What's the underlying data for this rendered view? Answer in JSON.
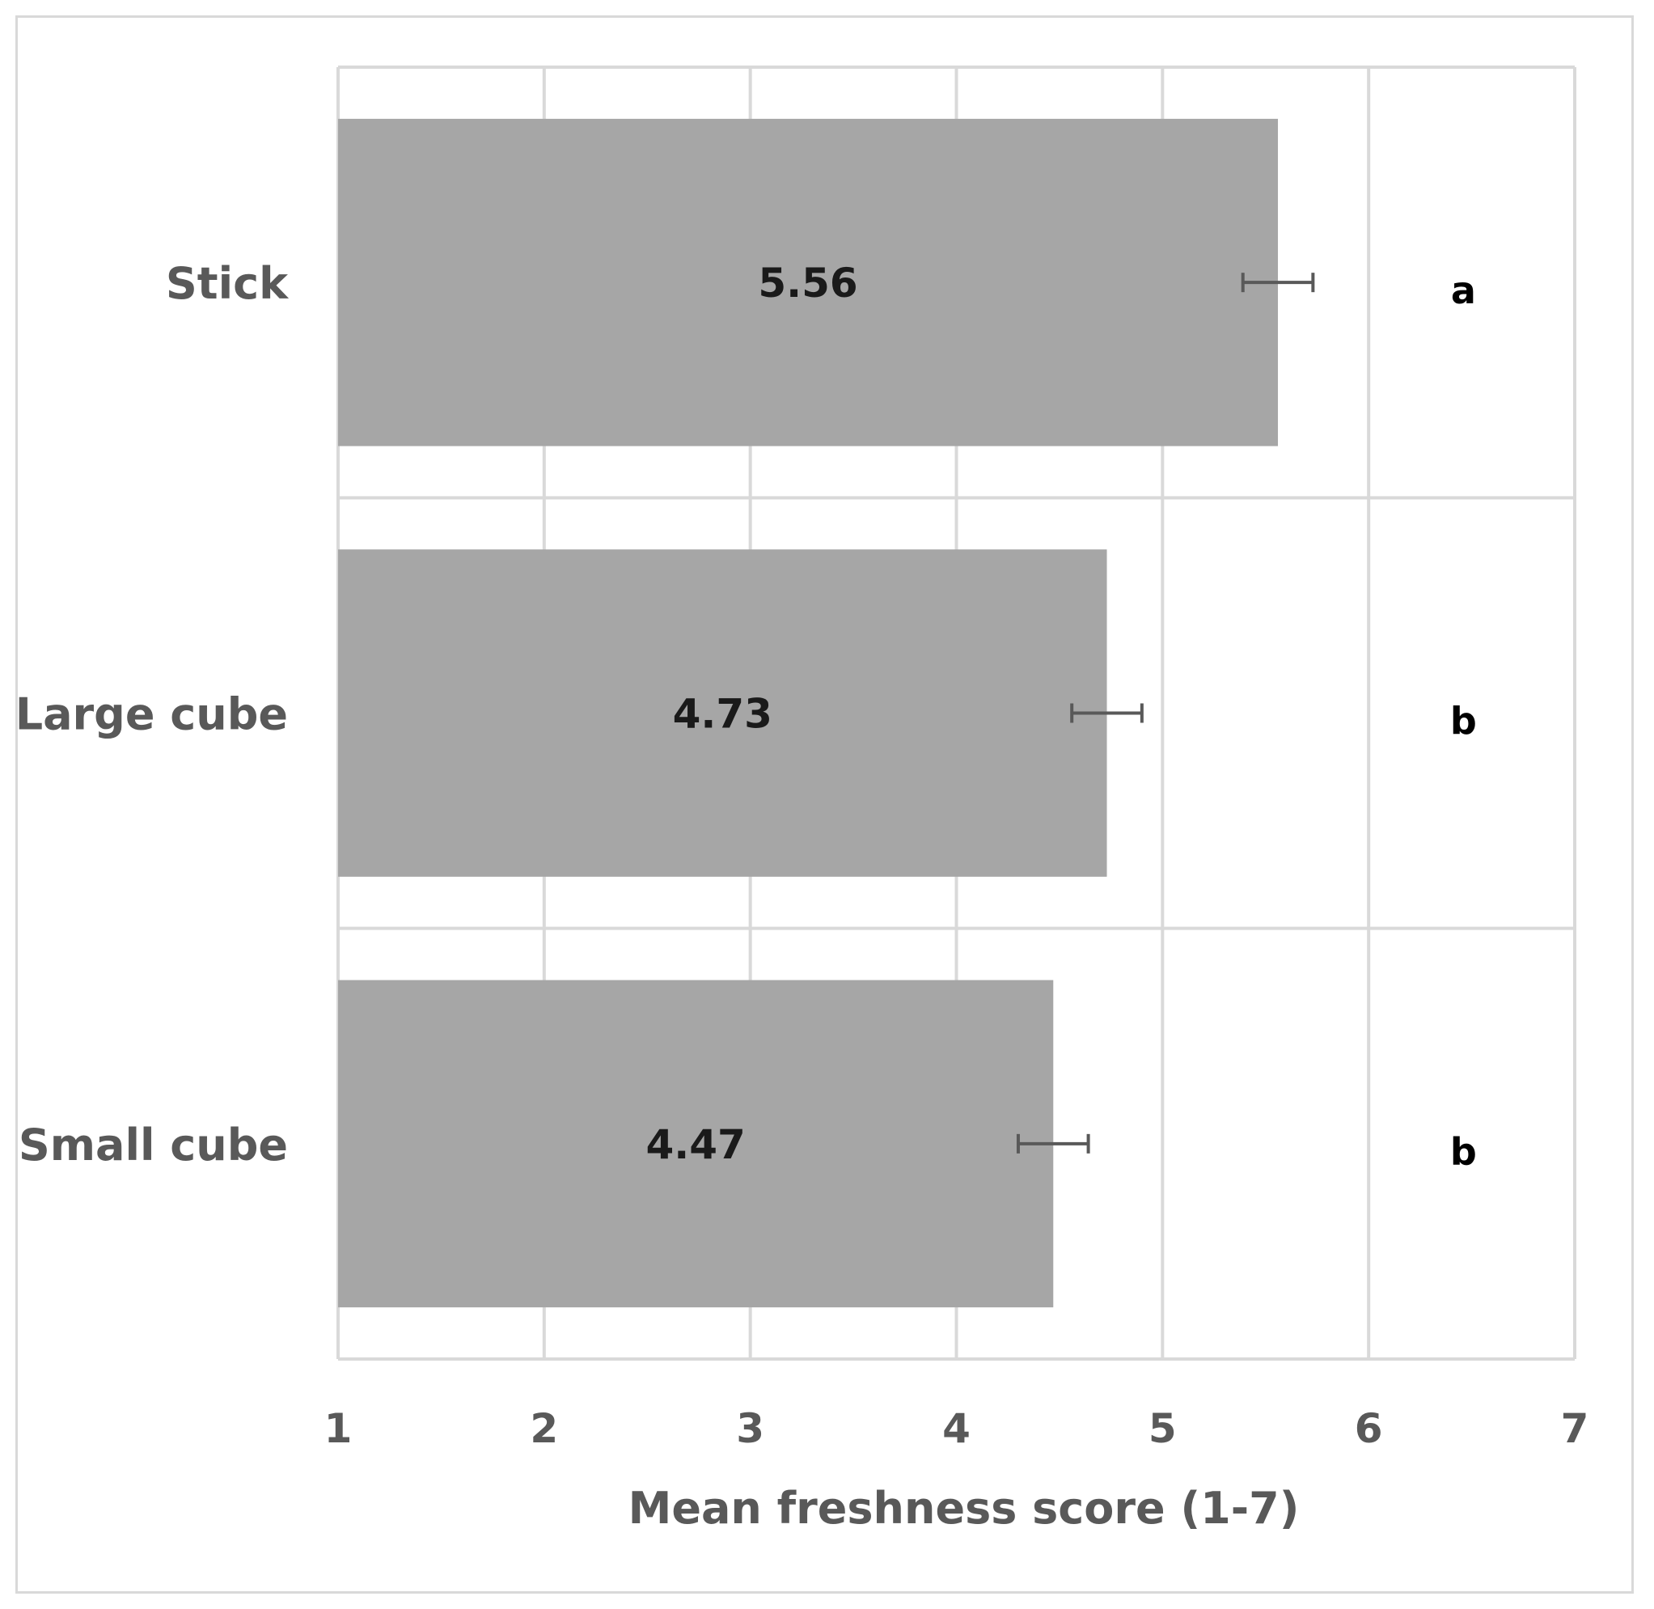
{
  "chart_data": {
    "type": "bar",
    "orientation": "horizontal",
    "categories": [
      "Stick",
      "Large cube",
      "Small cube"
    ],
    "values": [
      5.56,
      4.73,
      4.47
    ],
    "data_labels": [
      "5.56",
      "4.73",
      "4.47"
    ],
    "error_bars": [
      0.17,
      0.17,
      0.17
    ],
    "significance_letters": [
      "a",
      "b",
      "b"
    ],
    "xlabel": "Mean freshness score (1-7)",
    "xlim": [
      1,
      7
    ],
    "x_ticks": [
      1,
      2,
      3,
      4,
      5,
      6,
      7
    ],
    "grid": true,
    "bar_color": "#a6a6a6",
    "error_bar_color": "#595959",
    "grid_color": "#d9d9d9"
  }
}
